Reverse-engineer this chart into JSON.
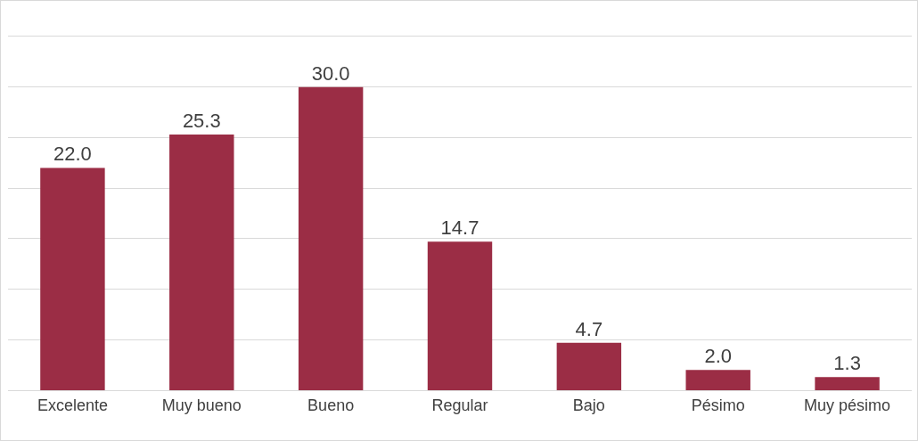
{
  "chart_data": {
    "type": "bar",
    "categories": [
      "Excelente",
      "Muy bueno",
      "Bueno",
      "Regular",
      "Bajo",
      "Pésimo",
      "Muy pésimo"
    ],
    "values": [
      22.0,
      25.3,
      30.0,
      14.7,
      4.7,
      2.0,
      1.3
    ],
    "value_labels": [
      "22.0",
      "25.3",
      "30.0",
      "14.7",
      "4.7",
      "2.0",
      "1.3"
    ],
    "color": "#9b2d45",
    "ylim": [
      0,
      35
    ],
    "yticks": [
      {
        "value": 0,
        "label": null
      },
      {
        "value": 5,
        "label": null
      },
      {
        "value": 10,
        "label": null
      },
      {
        "value": 15,
        "label": null
      },
      {
        "value": 20,
        "label": null
      },
      {
        "value": 25,
        "label": null
      },
      {
        "value": 30,
        "label": null
      },
      {
        "value": 35,
        "label": null
      }
    ],
    "tick_labels": "x",
    "grid": "y"
  }
}
